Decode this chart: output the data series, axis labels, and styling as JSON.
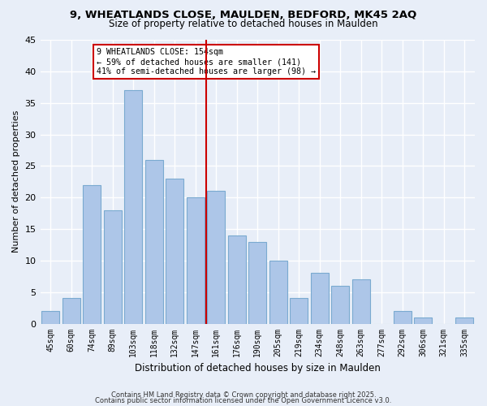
{
  "title": "9, WHEATLANDS CLOSE, MAULDEN, BEDFORD, MK45 2AQ",
  "subtitle": "Size of property relative to detached houses in Maulden",
  "xlabel": "Distribution of detached houses by size in Maulden",
  "ylabel": "Number of detached properties",
  "bar_labels": [
    "45sqm",
    "60sqm",
    "74sqm",
    "89sqm",
    "103sqm",
    "118sqm",
    "132sqm",
    "147sqm",
    "161sqm",
    "176sqm",
    "190sqm",
    "205sqm",
    "219sqm",
    "234sqm",
    "248sqm",
    "263sqm",
    "277sqm",
    "292sqm",
    "306sqm",
    "321sqm",
    "335sqm"
  ],
  "bar_values": [
    2,
    4,
    22,
    18,
    37,
    26,
    23,
    20,
    21,
    14,
    13,
    10,
    4,
    8,
    6,
    7,
    0,
    2,
    1,
    0,
    1
  ],
  "bar_color": "#adc6e8",
  "bar_edge_color": "#7aaad0",
  "bg_color": "#e8eef8",
  "grid_color": "#ffffff",
  "vline_x": 7.5,
  "vline_color": "#cc0000",
  "annotation_line1": "9 WHEATLANDS CLOSE: 154sqm",
  "annotation_line2": "← 59% of detached houses are smaller (141)",
  "annotation_line3": "41% of semi-detached houses are larger (98) →",
  "annotation_box_color": "#ffffff",
  "annotation_box_edge": "#cc0000",
  "ylim": [
    0,
    45
  ],
  "yticks": [
    0,
    5,
    10,
    15,
    20,
    25,
    30,
    35,
    40,
    45
  ],
  "footer1": "Contains HM Land Registry data © Crown copyright and database right 2025.",
  "footer2": "Contains public sector information licensed under the Open Government Licence v3.0."
}
